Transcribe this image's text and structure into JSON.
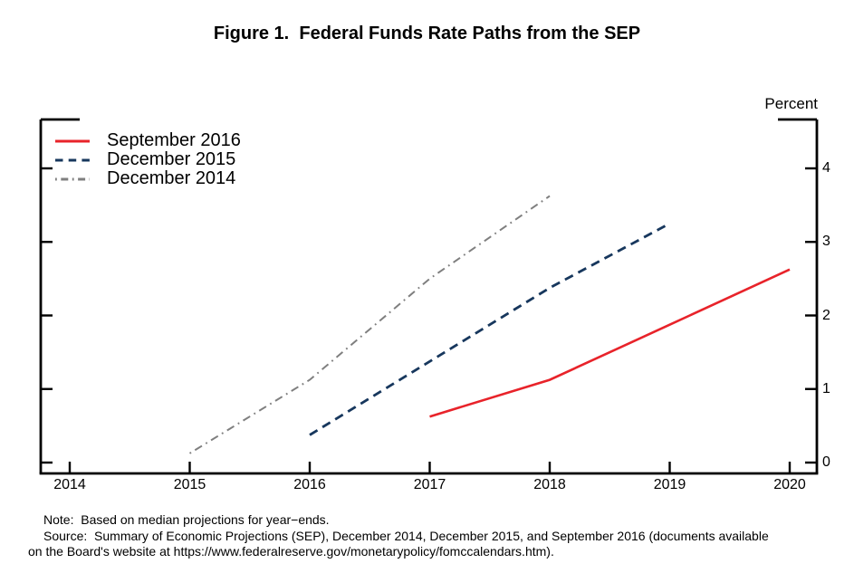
{
  "title": "Figure 1.  Federal Funds Rate Paths from the SEP",
  "y_axis_title": "Percent",
  "footnote": {
    "note": "Note:  Based on median projections for year−ends.",
    "source_line1": "Source:  Summary of Economic Projections (SEP), December 2014, December 2015, and September 2016 (documents available",
    "source_line2": "on the Board's website at https://www.federalreserve.gov/monetarypolicy/fomccalendars.htm)."
  },
  "colors": {
    "axis": "#000000",
    "september_2016": "#e8232a",
    "december_2015": "#17375d",
    "december_2014": "#7f7f7f"
  },
  "chart_data": {
    "type": "line",
    "title": "Figure 1.  Federal Funds Rate Paths from the SEP",
    "xlabel": "",
    "ylabel": "Percent",
    "x_ticks": [
      2014,
      2015,
      2016,
      2017,
      2018,
      2019,
      2020
    ],
    "x_tick_labels": [
      "2014",
      "2015",
      "2016",
      "2017",
      "2018",
      "2019",
      "2020"
    ],
    "y_ticks": [
      0,
      1,
      2,
      3,
      4
    ],
    "y_tick_labels": [
      "0",
      "1",
      "2",
      "3",
      "4"
    ],
    "xlim": [
      2013.76,
      2020.23
    ],
    "ylim": [
      -0.15,
      4.66
    ],
    "grid": false,
    "y_axis_side": "right",
    "legend_position": "top-left",
    "series": [
      {
        "name": "September 2016",
        "line_style": "solid",
        "color": "#e8232a",
        "x": [
          2017,
          2018,
          2019,
          2020
        ],
        "values": [
          0.625,
          1.125,
          1.875,
          2.625
        ]
      },
      {
        "name": "December 2015",
        "line_style": "dashed",
        "color": "#17375d",
        "x": [
          2016,
          2017,
          2018,
          2019
        ],
        "values": [
          0.375,
          1.375,
          2.375,
          3.25
        ]
      },
      {
        "name": "December 2014",
        "line_style": "dashdot",
        "color": "#7f7f7f",
        "x": [
          2015,
          2016,
          2017,
          2018
        ],
        "values": [
          0.125,
          1.125,
          2.5,
          3.625
        ]
      }
    ]
  }
}
